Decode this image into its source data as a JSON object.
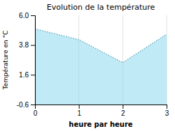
{
  "chart_data": {
    "type": "area",
    "title": "Evolution de la température",
    "x_label": "heure par heure",
    "y_label": "Température en °C",
    "x": [
      0,
      1,
      2,
      3
    ],
    "values": [
      5.0,
      4.2,
      2.5,
      4.6
    ],
    "color": "#8dd8ee",
    "line_style": "dotted",
    "xlim": [
      0,
      3
    ],
    "ylim": [
      -0.6,
      6.0
    ],
    "xticks": [
      0,
      1,
      2,
      3
    ],
    "yticks": [
      -0.6,
      1.6,
      3.8,
      {
        "value": 6.0,
        "label": "6.0"
      }
    ],
    "grid": "x"
  }
}
